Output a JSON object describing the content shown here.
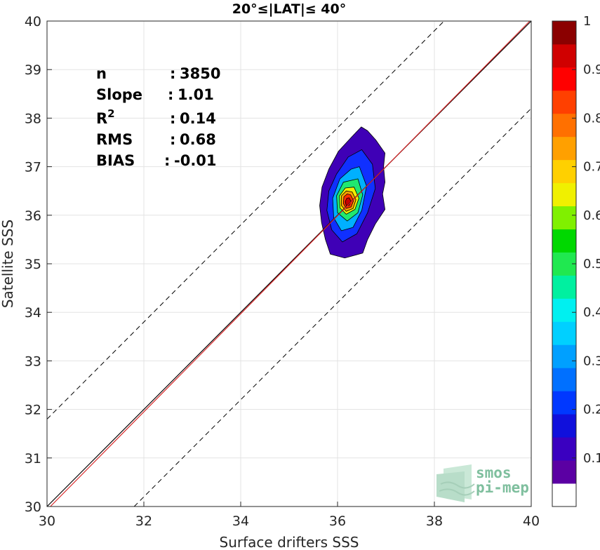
{
  "chart_data": {
    "type": "scatter",
    "title": "20°≤|LAT|≤ 40°",
    "xlabel": "Surface drifters SSS",
    "ylabel": "Satellite SSS",
    "xlim": [
      30,
      40
    ],
    "ylim": [
      30,
      40
    ],
    "xticks": [
      "30",
      "32",
      "34",
      "36",
      "38",
      "40"
    ],
    "yticks": [
      "30",
      "31",
      "32",
      "33",
      "34",
      "35",
      "36",
      "37",
      "38",
      "39",
      "40"
    ],
    "grid": true,
    "stats": [
      {
        "label": "n",
        "sep": ":",
        "value": "3850"
      },
      {
        "label": "Slope",
        "sep": ":",
        "value": "1.01"
      },
      {
        "label": "R",
        "sup": "2",
        "sep": ":",
        "value": "0.14"
      },
      {
        "label": "RMS",
        "sep": ":",
        "value": "0.68"
      },
      {
        "label": "BIAS",
        "sep": ":",
        "value": "-0.01"
      }
    ],
    "lines": {
      "one_to_one": {
        "slope": 1,
        "intercept": 0,
        "color": "#000000"
      },
      "fit": {
        "slope": 1.01,
        "intercept": -0.37,
        "color": "#d62728"
      },
      "dashed_offset": 1.8
    },
    "density_center": [
      36.22,
      36.28
    ],
    "density_levels": [
      {
        "level": 0.05,
        "color": "#3f00b6",
        "pts": [
          [
            36.49,
            37.82
          ],
          [
            36.62,
            37.74
          ],
          [
            36.79,
            37.55
          ],
          [
            36.98,
            37.28
          ],
          [
            36.95,
            37.0
          ],
          [
            36.98,
            36.68
          ],
          [
            36.93,
            36.44
          ],
          [
            36.98,
            36.12
          ],
          [
            36.78,
            35.82
          ],
          [
            36.62,
            35.5
          ],
          [
            36.52,
            35.22
          ],
          [
            36.15,
            35.12
          ],
          [
            35.85,
            35.2
          ],
          [
            35.75,
            35.5
          ],
          [
            35.67,
            35.85
          ],
          [
            35.63,
            36.2
          ],
          [
            35.68,
            36.58
          ],
          [
            35.82,
            36.95
          ],
          [
            36.02,
            37.32
          ],
          [
            36.28,
            37.6
          ]
        ]
      },
      {
        "level": 0.15,
        "color": "#1030ff",
        "pts": [
          [
            36.5,
            37.35
          ],
          [
            36.72,
            37.05
          ],
          [
            36.78,
            36.55
          ],
          [
            36.62,
            36.05
          ],
          [
            36.4,
            35.62
          ],
          [
            36.1,
            35.45
          ],
          [
            35.88,
            35.7
          ],
          [
            35.78,
            36.1
          ],
          [
            35.82,
            36.5
          ],
          [
            35.98,
            36.85
          ],
          [
            36.22,
            37.2
          ]
        ]
      },
      {
        "level": 0.3,
        "color": "#00b0ff",
        "pts": [
          [
            36.45,
            37.0
          ],
          [
            36.6,
            36.6
          ],
          [
            36.5,
            36.1
          ],
          [
            36.32,
            35.75
          ],
          [
            36.08,
            35.68
          ],
          [
            35.92,
            35.95
          ],
          [
            35.9,
            36.35
          ],
          [
            36.05,
            36.75
          ],
          [
            36.28,
            36.95
          ]
        ]
      },
      {
        "level": 0.45,
        "color": "#20e870",
        "pts": [
          [
            36.42,
            36.75
          ],
          [
            36.52,
            36.42
          ],
          [
            36.42,
            36.05
          ],
          [
            36.2,
            35.88
          ],
          [
            36.0,
            36.05
          ],
          [
            35.98,
            36.4
          ],
          [
            36.12,
            36.68
          ]
        ]
      },
      {
        "level": 0.6,
        "color": "#f0f000",
        "pts": [
          [
            36.34,
            36.58
          ],
          [
            36.44,
            36.35
          ],
          [
            36.36,
            36.12
          ],
          [
            36.18,
            36.02
          ],
          [
            36.05,
            36.15
          ],
          [
            36.04,
            36.4
          ],
          [
            36.16,
            36.56
          ]
        ]
      },
      {
        "level": 0.72,
        "color": "#ffa000",
        "pts": [
          [
            36.3,
            36.48
          ],
          [
            36.38,
            36.32
          ],
          [
            36.32,
            36.14
          ],
          [
            36.18,
            36.08
          ],
          [
            36.08,
            36.2
          ],
          [
            36.08,
            36.4
          ],
          [
            36.18,
            36.5
          ]
        ]
      },
      {
        "level": 0.85,
        "color": "#ff3000",
        "pts": [
          [
            36.27,
            36.42
          ],
          [
            36.33,
            36.3
          ],
          [
            36.28,
            36.17
          ],
          [
            36.18,
            36.14
          ],
          [
            36.12,
            36.24
          ],
          [
            36.13,
            36.38
          ],
          [
            36.2,
            36.44
          ]
        ]
      },
      {
        "level": 0.95,
        "color": "#c80000",
        "pts": [
          [
            36.24,
            36.36
          ],
          [
            36.28,
            36.28
          ],
          [
            36.24,
            36.2
          ],
          [
            36.18,
            36.2
          ],
          [
            36.16,
            36.28
          ],
          [
            36.19,
            36.35
          ]
        ]
      }
    ],
    "colorbar": {
      "ticks": [
        "0.1",
        "0.2",
        "0.3",
        "0.4",
        "0.5",
        "0.6",
        "0.7",
        "0.8",
        "0.9",
        "1"
      ],
      "colors": [
        "#ffffff",
        "#5b00a3",
        "#3a00c0",
        "#1010dc",
        "#0038ff",
        "#0070ff",
        "#00a0ff",
        "#00d0ff",
        "#00f0f0",
        "#00f0a0",
        "#20e850",
        "#00d800",
        "#80f000",
        "#f0f000",
        "#ffd000",
        "#ffa000",
        "#ff7000",
        "#ff4000",
        "#ff0000",
        "#d00000",
        "#8b0000"
      ]
    }
  },
  "logo": {
    "line1": "smos",
    "line2": "pi-mep"
  }
}
